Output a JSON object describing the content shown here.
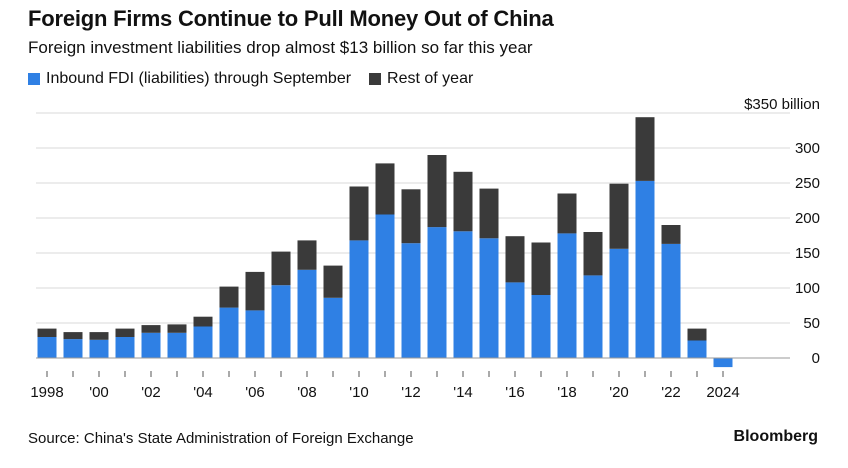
{
  "header": {
    "title": "Foreign Firms Continue to Pull Money Out of China",
    "subtitle": "Foreign investment liabilities drop almost $13 billion so far this year"
  },
  "footer": {
    "source": "Source: China's State Administration of Foreign Exchange",
    "brand": "Bloomberg"
  },
  "colors": {
    "through_september": "#2f80e4",
    "rest_of_year": "#3a3a3a",
    "gridline": "#d9d9d9",
    "zero_line": "#9a9a9a"
  },
  "chart_data": {
    "type": "bar",
    "stacked": true,
    "title": "Foreign Firms Continue to Pull Money Out of China",
    "subtitle": "Foreign investment liabilities drop almost $13 billion so far this year",
    "xlabel": "",
    "ylabel": "",
    "ylim": [
      -25,
      350
    ],
    "y_axis_position": "right",
    "y_ticks": [
      0,
      50,
      100,
      150,
      200,
      250,
      300,
      350
    ],
    "y_tick_labels": [
      "0",
      "50",
      "100",
      "150",
      "200",
      "250",
      "300",
      "$350 billion"
    ],
    "grid": true,
    "legend_position": "top-left",
    "categories": [
      "1998",
      "1999",
      "2000",
      "2001",
      "2002",
      "2003",
      "2004",
      "2005",
      "2006",
      "2007",
      "2008",
      "2009",
      "2010",
      "2011",
      "2012",
      "2013",
      "2014",
      "2015",
      "2016",
      "2017",
      "2018",
      "2019",
      "2020",
      "2021",
      "2022",
      "2023",
      "2024"
    ],
    "x_tick_labels": [
      "1998",
      "",
      "'00",
      "",
      "'02",
      "",
      "'04",
      "",
      "'06",
      "",
      "'08",
      "",
      "'10",
      "",
      "'12",
      "",
      "'14",
      "",
      "'16",
      "",
      "'18",
      "",
      "'20",
      "",
      "'22",
      "",
      "2024"
    ],
    "series": [
      {
        "name": "Inbound FDI (liabilities) through September",
        "color": "#2f80e4",
        "values": [
          30,
          27,
          26,
          30,
          36,
          36,
          45,
          72,
          68,
          104,
          126,
          86,
          168,
          205,
          164,
          187,
          181,
          171,
          108,
          90,
          178,
          118,
          156,
          253,
          163,
          25,
          -13
        ]
      },
      {
        "name": "Rest of year",
        "color": "#3a3a3a",
        "values": [
          12,
          10,
          11,
          12,
          11,
          12,
          14,
          30,
          55,
          48,
          42,
          46,
          77,
          73,
          77,
          103,
          85,
          71,
          66,
          75,
          57,
          62,
          93,
          91,
          27,
          17,
          0
        ]
      }
    ]
  }
}
